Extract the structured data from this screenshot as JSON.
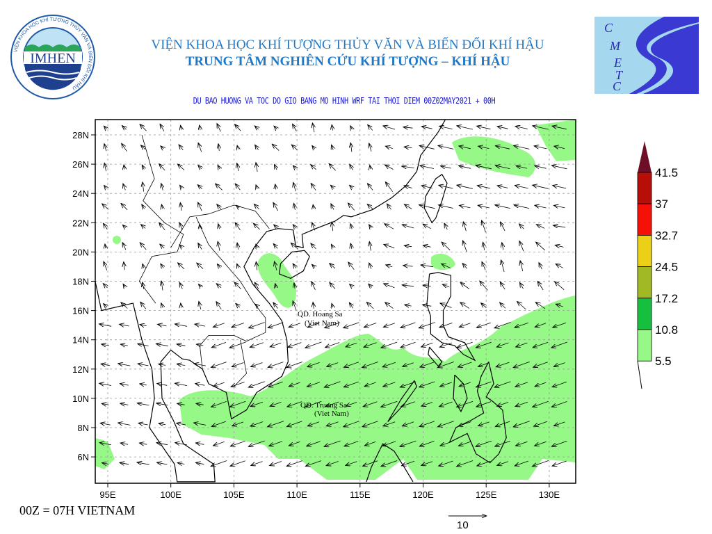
{
  "header": {
    "institute": "VIỆN KHOA HỌC KHÍ TƯỢNG THỦY VĂN VÀ BIẾN ĐỔI KHÍ HẬU",
    "center": "TRUNG TÂM NGHIÊN CỨU KHÍ TƯỢNG – KHÍ HẬU",
    "subtitle": "DU BAO HUONG VA TOC DO GIO BANG MO HINH WRF TAI THOI DIEM  00Z02MAY2021 + 00H"
  },
  "logos": {
    "left": {
      "text": "IMHEN",
      "ring_text": "VIỆN KHOA HỌC KHÍ TƯỢNG THỦY VĂN VÀ BIẾN ĐỔI KHÍ HẬU"
    },
    "right": {
      "letters": [
        "C",
        "M",
        "E",
        "T",
        "C"
      ]
    }
  },
  "map": {
    "lon_labels": [
      "95E",
      "100E",
      "105E",
      "110E",
      "115E",
      "120E",
      "125E",
      "130E"
    ],
    "lat_labels": [
      "28N",
      "26N",
      "24N",
      "22N",
      "20N",
      "18N",
      "16N",
      "14N",
      "12N",
      "10N",
      "8N",
      "6N"
    ],
    "annotations": [
      {
        "line1": "QD. Hoang Sa",
        "line2": "(Viet Nam)"
      },
      {
        "line1": "QD. Truong Sa",
        "line2": "(Viet Nam)"
      }
    ],
    "reference_vector": "10",
    "land_outline_color": "#000000",
    "wind_shading_color": "#96f886"
  },
  "legend": {
    "levels": [
      "41.5",
      "37",
      "32.7",
      "24.5",
      "17.2",
      "10.8",
      "5.5"
    ],
    "colors": [
      "#6e0f28",
      "#b80e08",
      "#f51008",
      "#ecd018",
      "#a1b922",
      "#16c03e",
      "#96f886"
    ]
  },
  "footer": {
    "note": "00Z = 07H VIETNAM"
  }
}
